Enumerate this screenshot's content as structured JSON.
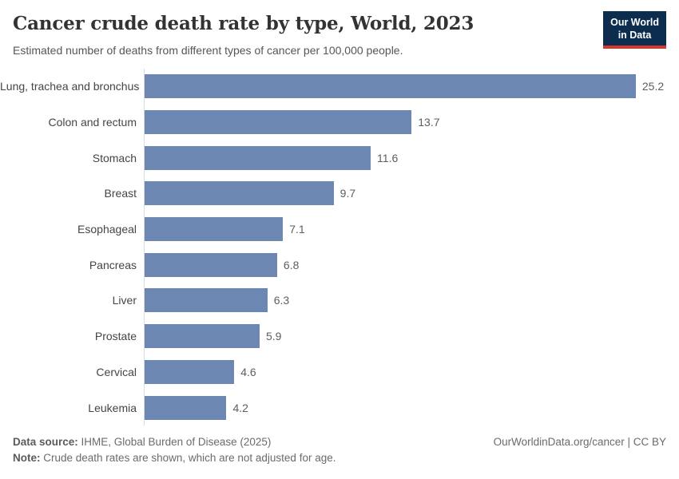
{
  "header": {
    "title": "Cancer crude death rate by type, World, 2023",
    "subtitle": "Estimated number of deaths from different types of cancer per 100,000 people.",
    "logo_line1": "Our World",
    "logo_line2": "in Data"
  },
  "chart_data": {
    "type": "bar",
    "orientation": "horizontal",
    "title": "Cancer crude death rate by type, World, 2023",
    "xlabel": "",
    "ylabel": "",
    "xlim": [
      0,
      25.2
    ],
    "grid": false,
    "legend": false,
    "bar_color": "#6c87b2",
    "categories": [
      "Lung, trachea and bronchus",
      "Colon and rectum",
      "Stomach",
      "Breast",
      "Esophageal",
      "Pancreas",
      "Liver",
      "Prostate",
      "Cervical",
      "Leukemia"
    ],
    "values": [
      25.2,
      13.7,
      11.6,
      9.7,
      7.1,
      6.8,
      6.3,
      5.9,
      4.6,
      4.2
    ],
    "value_labels": [
      "25.2",
      "13.7",
      "11.6",
      "9.7",
      "7.1",
      "6.8",
      "6.3",
      "5.9",
      "4.6",
      "4.2"
    ]
  },
  "footer": {
    "datasource_label": "Data source:",
    "datasource_text": " IHME, Global Burden of Disease (2025)",
    "note_label": "Note:",
    "note_text": " Crude death rates are shown, which are not adjusted for age.",
    "link": "OurWorldinData.org/cancer | CC BY"
  },
  "colors": {
    "bar": "#6c87b2",
    "logo_background": "#0c2d4e",
    "logo_underline": "#d6372d",
    "axis_line": "#dbdbdb"
  }
}
